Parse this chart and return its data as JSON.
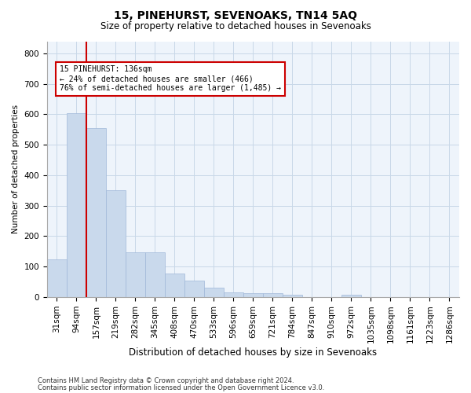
{
  "title": "15, PINEHURST, SEVENOAKS, TN14 5AQ",
  "subtitle": "Size of property relative to detached houses in Sevenoaks",
  "xlabel": "Distribution of detached houses by size in Sevenoaks",
  "ylabel": "Number of detached properties",
  "categories": [
    "31sqm",
    "94sqm",
    "157sqm",
    "219sqm",
    "282sqm",
    "345sqm",
    "408sqm",
    "470sqm",
    "533sqm",
    "596sqm",
    "659sqm",
    "721sqm",
    "784sqm",
    "847sqm",
    "910sqm",
    "972sqm",
    "1035sqm",
    "1098sqm",
    "1161sqm",
    "1223sqm",
    "1286sqm"
  ],
  "values": [
    125,
    605,
    555,
    350,
    148,
    148,
    78,
    55,
    32,
    15,
    13,
    13,
    7,
    0,
    0,
    8,
    0,
    0,
    0,
    0,
    0
  ],
  "bar_color": "#c9d9ec",
  "bar_edge_color": "#a0b8d8",
  "vline_color": "#cc0000",
  "annotation_text": "15 PINEHURST: 136sqm\n← 24% of detached houses are smaller (466)\n76% of semi-detached houses are larger (1,485) →",
  "annotation_box_color": "#ffffff",
  "annotation_box_edge": "#cc0000",
  "ylim": [
    0,
    840
  ],
  "grid_color": "#c8d8e8",
  "background_color": "#eef4fb",
  "footer1": "Contains HM Land Registry data © Crown copyright and database right 2024.",
  "footer2": "Contains public sector information licensed under the Open Government Licence v3.0."
}
